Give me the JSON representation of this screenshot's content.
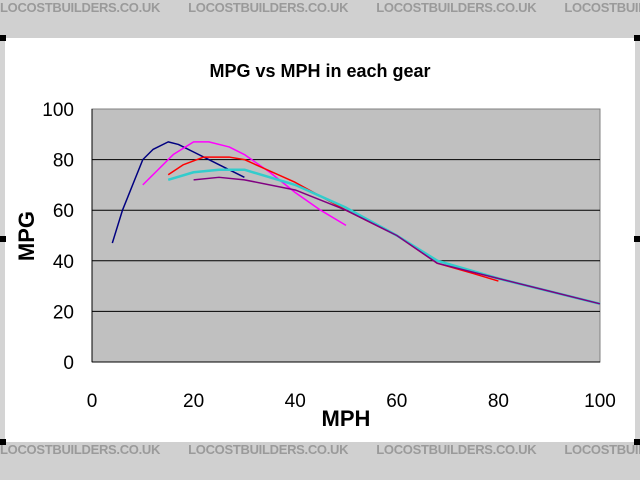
{
  "watermark": "LOCOSTBUILDERS.CO.UK",
  "chart_data": {
    "type": "line",
    "title": "MPG vs MPH in each gear",
    "xlabel": "MPH",
    "ylabel": "MPG",
    "xlim": [
      0,
      100
    ],
    "ylim": [
      0,
      100
    ],
    "xticks": [
      0,
      20,
      40,
      60,
      80,
      100
    ],
    "yticks": [
      0,
      20,
      40,
      60,
      80,
      100
    ],
    "grid": true,
    "background": "#c0c0c0",
    "series": [
      {
        "color": "#000080",
        "points": [
          [
            4,
            47
          ],
          [
            6,
            60
          ],
          [
            8,
            70
          ],
          [
            10,
            80
          ],
          [
            12,
            84
          ],
          [
            15,
            87
          ],
          [
            17,
            86
          ],
          [
            20,
            83
          ],
          [
            25,
            78
          ],
          [
            30,
            73
          ]
        ]
      },
      {
        "color": "#ff00ff",
        "points": [
          [
            10,
            70
          ],
          [
            13,
            76
          ],
          [
            16,
            82
          ],
          [
            20,
            87
          ],
          [
            23,
            87
          ],
          [
            27,
            85
          ],
          [
            30,
            82
          ],
          [
            35,
            75
          ],
          [
            40,
            67
          ],
          [
            45,
            60
          ],
          [
            50,
            54
          ]
        ]
      },
      {
        "color": "#ff0000",
        "points": [
          [
            15,
            74
          ],
          [
            18,
            78
          ],
          [
            22,
            81
          ],
          [
            27,
            81
          ],
          [
            30,
            80
          ],
          [
            40,
            71
          ],
          [
            50,
            60
          ],
          [
            60,
            50
          ],
          [
            68,
            39
          ],
          [
            75,
            35
          ],
          [
            80,
            32
          ]
        ]
      },
      {
        "color": "#33cccc",
        "points": [
          [
            15,
            72
          ],
          [
            20,
            75
          ],
          [
            25,
            76
          ],
          [
            30,
            76
          ],
          [
            40,
            70
          ],
          [
            50,
            61
          ],
          [
            60,
            50
          ],
          [
            68,
            40
          ],
          [
            80,
            33
          ],
          [
            90,
            28
          ],
          [
            100,
            23
          ]
        ]
      },
      {
        "color": "#800080",
        "points": [
          [
            20,
            72
          ],
          [
            25,
            73
          ],
          [
            30,
            72
          ],
          [
            40,
            68
          ],
          [
            50,
            60
          ],
          [
            60,
            50
          ],
          [
            68,
            39
          ],
          [
            80,
            33
          ],
          [
            90,
            28
          ],
          [
            100,
            23
          ]
        ]
      }
    ]
  }
}
